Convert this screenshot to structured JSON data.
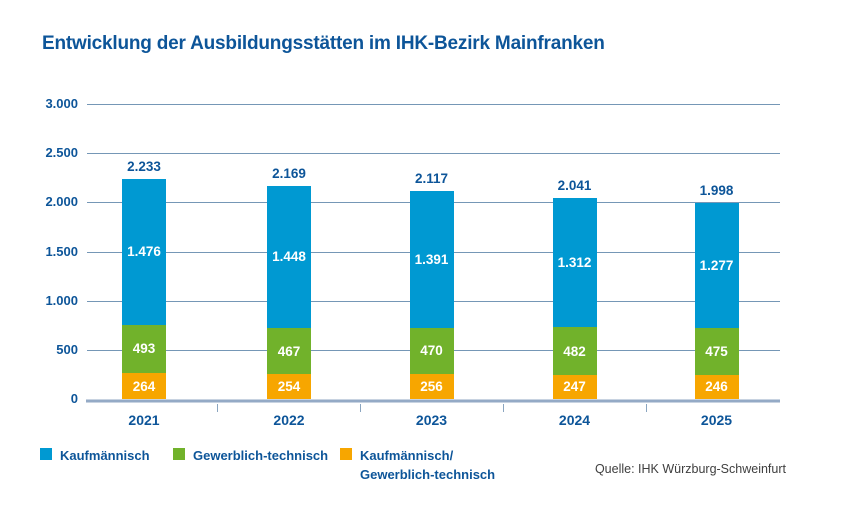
{
  "title": "Entwicklung der Ausbildungsstätten im IHK-Bezirk Mainfranken",
  "source_note": "Quelle: IHK Würzburg-Schweinfurt",
  "colors": {
    "kaufmaennisch_blue": "#0099d2",
    "gewerblich_green": "#71b22b",
    "kombi_orange": "#f7a600",
    "text_blue": "#0d5599",
    "gridline": "#7597b6",
    "source_text": "#3f3f3f"
  },
  "chart_data": {
    "type": "bar",
    "stacked": true,
    "title": "Entwicklung der Ausbildungsstätten im IHK-Bezirk Mainfranken",
    "categories": [
      "2021",
      "2022",
      "2023",
      "2024",
      "2025"
    ],
    "series": [
      {
        "name": "Kaufmännisch",
        "key": "kaufmaennisch",
        "color": "#0099d2",
        "values": [
          1476,
          1448,
          1391,
          1312,
          1277
        ]
      },
      {
        "name": "Gewerblich-technisch",
        "key": "gewerblich-technisch",
        "color": "#71b22b",
        "values": [
          493,
          467,
          470,
          482,
          475
        ]
      },
      {
        "name": "Kaufmännisch/Gewerblich-technisch",
        "key": "kaufmaennisch-gewerblich-technisch",
        "color": "#f7a600",
        "values": [
          264,
          254,
          256,
          247,
          246
        ]
      }
    ],
    "stack_order_bottom_to_top": [
      "kaufmaennisch-gewerblich-technisch",
      "gewerblich-technisch",
      "kaufmaennisch"
    ],
    "totals": [
      2233,
      2169,
      2117,
      2041,
      1998
    ],
    "total_labels": [
      "2.233",
      "2.169",
      "2.117",
      "2.041",
      "1.998"
    ],
    "xlabel": "",
    "ylabel": "",
    "ylim": [
      0,
      3000
    ],
    "ytick_values": [
      0,
      500,
      1000,
      1500,
      2000,
      2500,
      3000
    ],
    "ytick_labels": [
      "0",
      "500",
      "1.000",
      "1.500",
      "2.000",
      "2.500",
      "3.000"
    ],
    "grid": "horizontal",
    "legend_position": "bottom-left",
    "thousands_separator": "."
  },
  "legend": {
    "items": [
      {
        "label": "Kaufmännisch",
        "color": "#0099d2"
      },
      {
        "label": "Gewerblich-technisch",
        "color": "#71b22b"
      },
      {
        "label_line1": "Kaufmännisch/",
        "label_line2": "Gewerblich-technisch",
        "color": "#f7a600"
      }
    ]
  }
}
